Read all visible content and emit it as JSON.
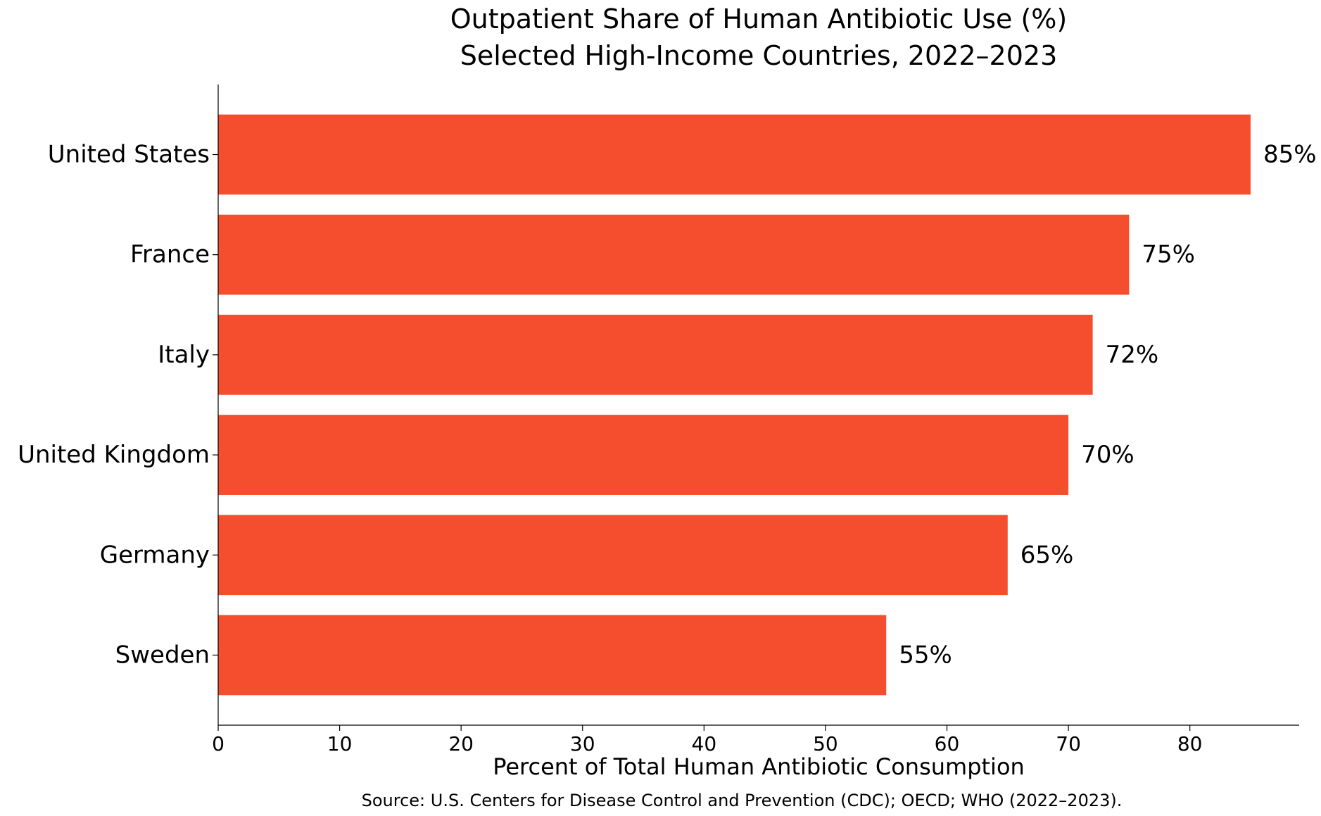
{
  "chart_data": {
    "type": "bar",
    "orientation": "horizontal",
    "title": "Outpatient Share of Human Antibiotic Use (%)",
    "subtitle": "Selected High-Income Countries, 2022–2023",
    "xlabel": "Percent of Total Human Antibiotic Consumption",
    "ylabel": "",
    "source": "Source: U.S. Centers for Disease Control and Prevention (CDC); OECD; WHO (2022–2023).",
    "categories": [
      "United States",
      "France",
      "Italy",
      "United Kingdom",
      "Germany",
      "Sweden"
    ],
    "values": [
      85,
      75,
      72,
      70,
      65,
      55
    ],
    "data_labels": [
      "85%",
      "75%",
      "72%",
      "70%",
      "65%",
      "55%"
    ],
    "xlim": [
      0,
      89
    ],
    "xticks": [
      0,
      10,
      20,
      30,
      40,
      50,
      60,
      70,
      80
    ],
    "grid": false,
    "legend": "none",
    "bar_color": "#f44e2f"
  }
}
